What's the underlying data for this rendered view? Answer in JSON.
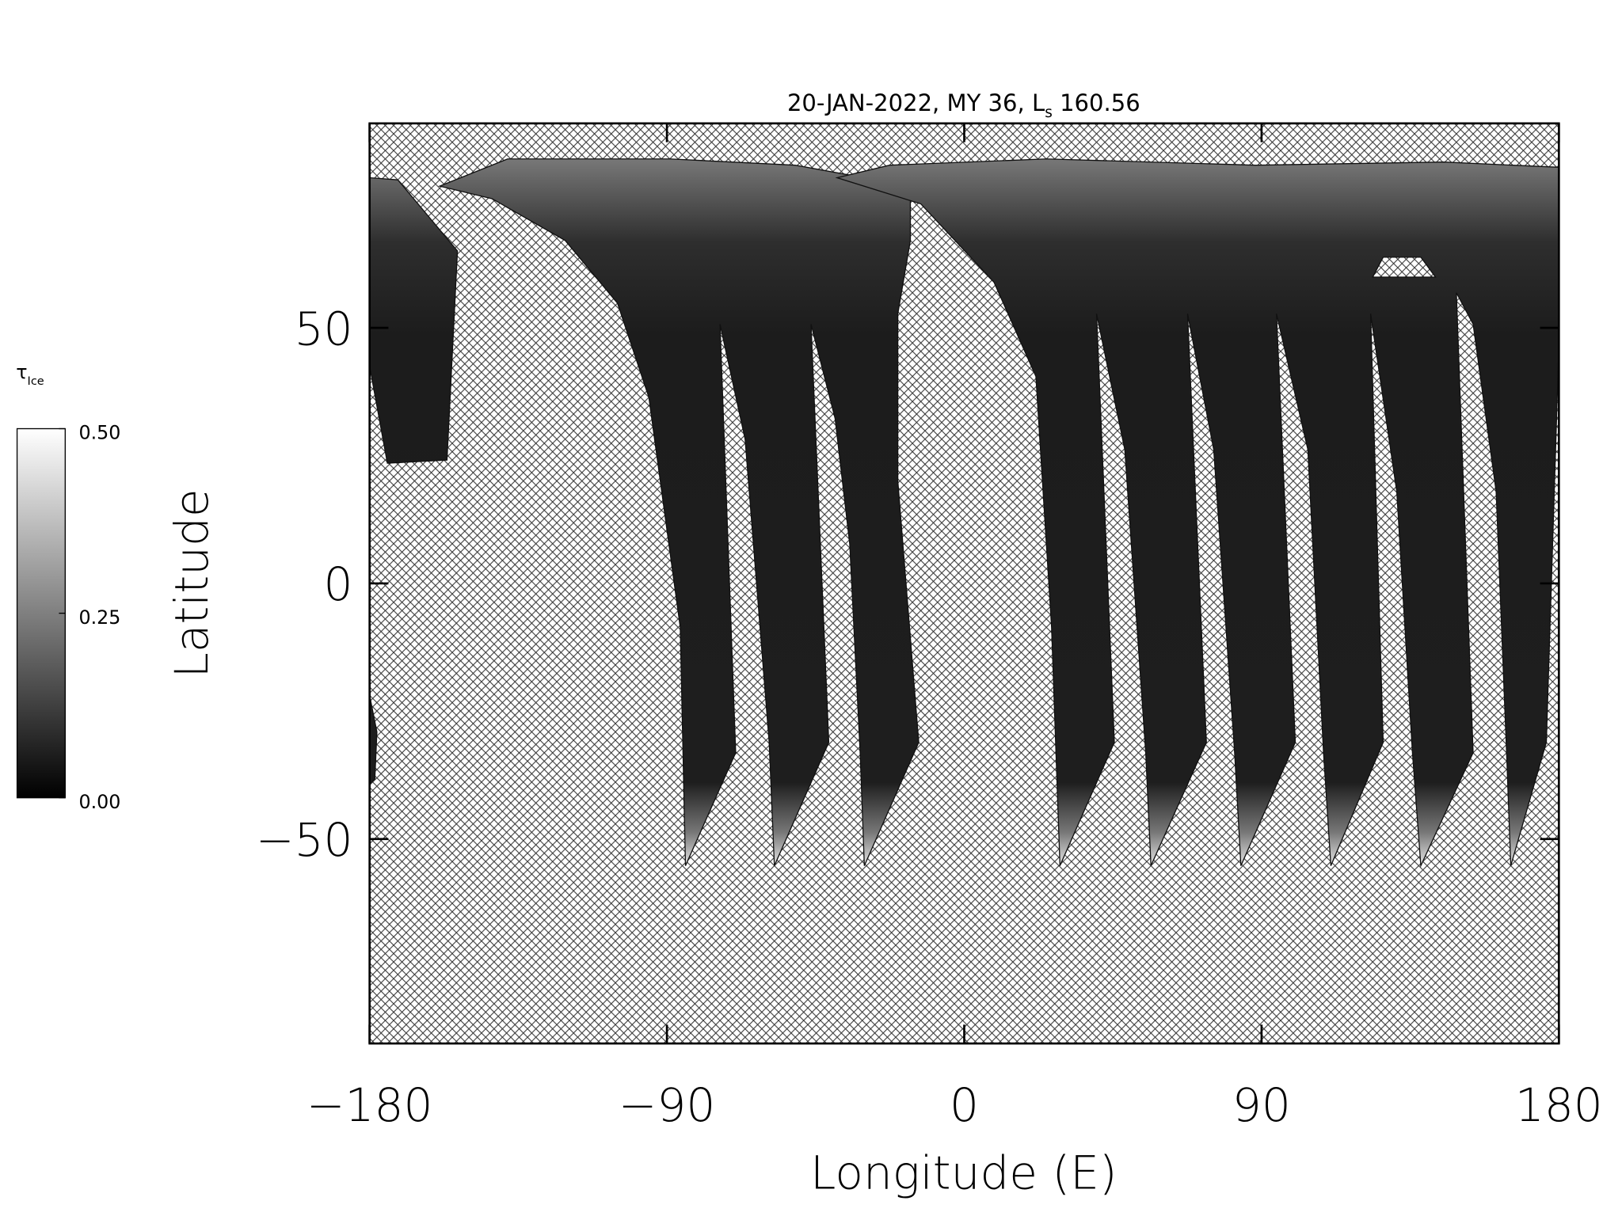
{
  "chart_data": {
    "type": "swath-map",
    "title": {
      "prefix": "20-JAN-2022, MY 36,  ",
      "symbol": "L",
      "subscript": "s",
      "value": " 160.56"
    },
    "xlabel": "Longitude (E)",
    "ylabel": "Latitude",
    "xlim": [
      -180,
      180
    ],
    "ylim": [
      -90,
      90
    ],
    "xticks": [
      {
        "value": -180,
        "label": "−180"
      },
      {
        "value": -90,
        "label": "−90"
      },
      0,
      90,
      180
    ],
    "yticks": [
      {
        "value": -50,
        "label": "−50"
      },
      0,
      50
    ],
    "grid": false,
    "colorbar": {
      "symbol": "τ",
      "subscript": "Ice",
      "lim": [
        0,
        0.5
      ],
      "ticks": [
        {
          "value": 0,
          "label": "0.00"
        },
        {
          "value": 0.25,
          "label": "0.25"
        },
        {
          "value": 0.5,
          "label": "0.50"
        }
      ],
      "colors": [
        "#000000",
        "#ffffff"
      ]
    }
  }
}
